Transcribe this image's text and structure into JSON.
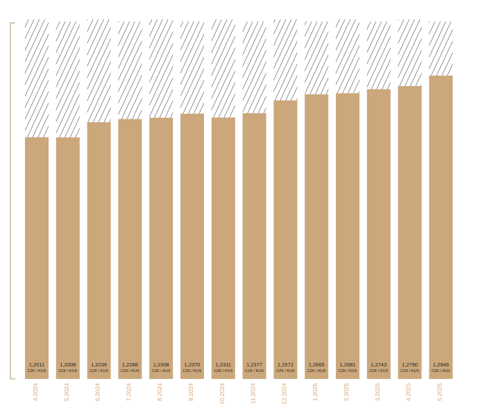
{
  "chart_data": {
    "type": "bar",
    "categories": [
      "4.2024",
      "5.2024",
      "6.2024",
      "7.2024",
      "8.2024",
      "9.2024",
      "10.2024",
      "11.2024",
      "12.2024",
      "1.2025",
      "2.2025",
      "3.2025",
      "4.2025",
      "5.2025"
    ],
    "values": [
      1.2011,
      1.2008,
      1.2239,
      1.2288,
      1.2308,
      1.237,
      1.2311,
      1.2377,
      1.2572,
      1.2665,
      1.2681,
      1.2743,
      1.279,
      1.2949
    ],
    "value_labels": [
      "1,2011",
      "1,2008",
      "1,2239",
      "1,2288",
      "1,2308",
      "1,2370",
      "1,2311",
      "1,2377",
      "1,2572",
      "1,2665",
      "1,2681",
      "1,2743",
      "1,2790",
      "1,2949"
    ],
    "unit_label": "CZK / KUS",
    "style": {
      "bar_color": "#cba77b",
      "hatch": "diagonal",
      "label_color": "#d9a473",
      "axis_bracket": "left",
      "grid": false,
      "legend": "none"
    }
  }
}
